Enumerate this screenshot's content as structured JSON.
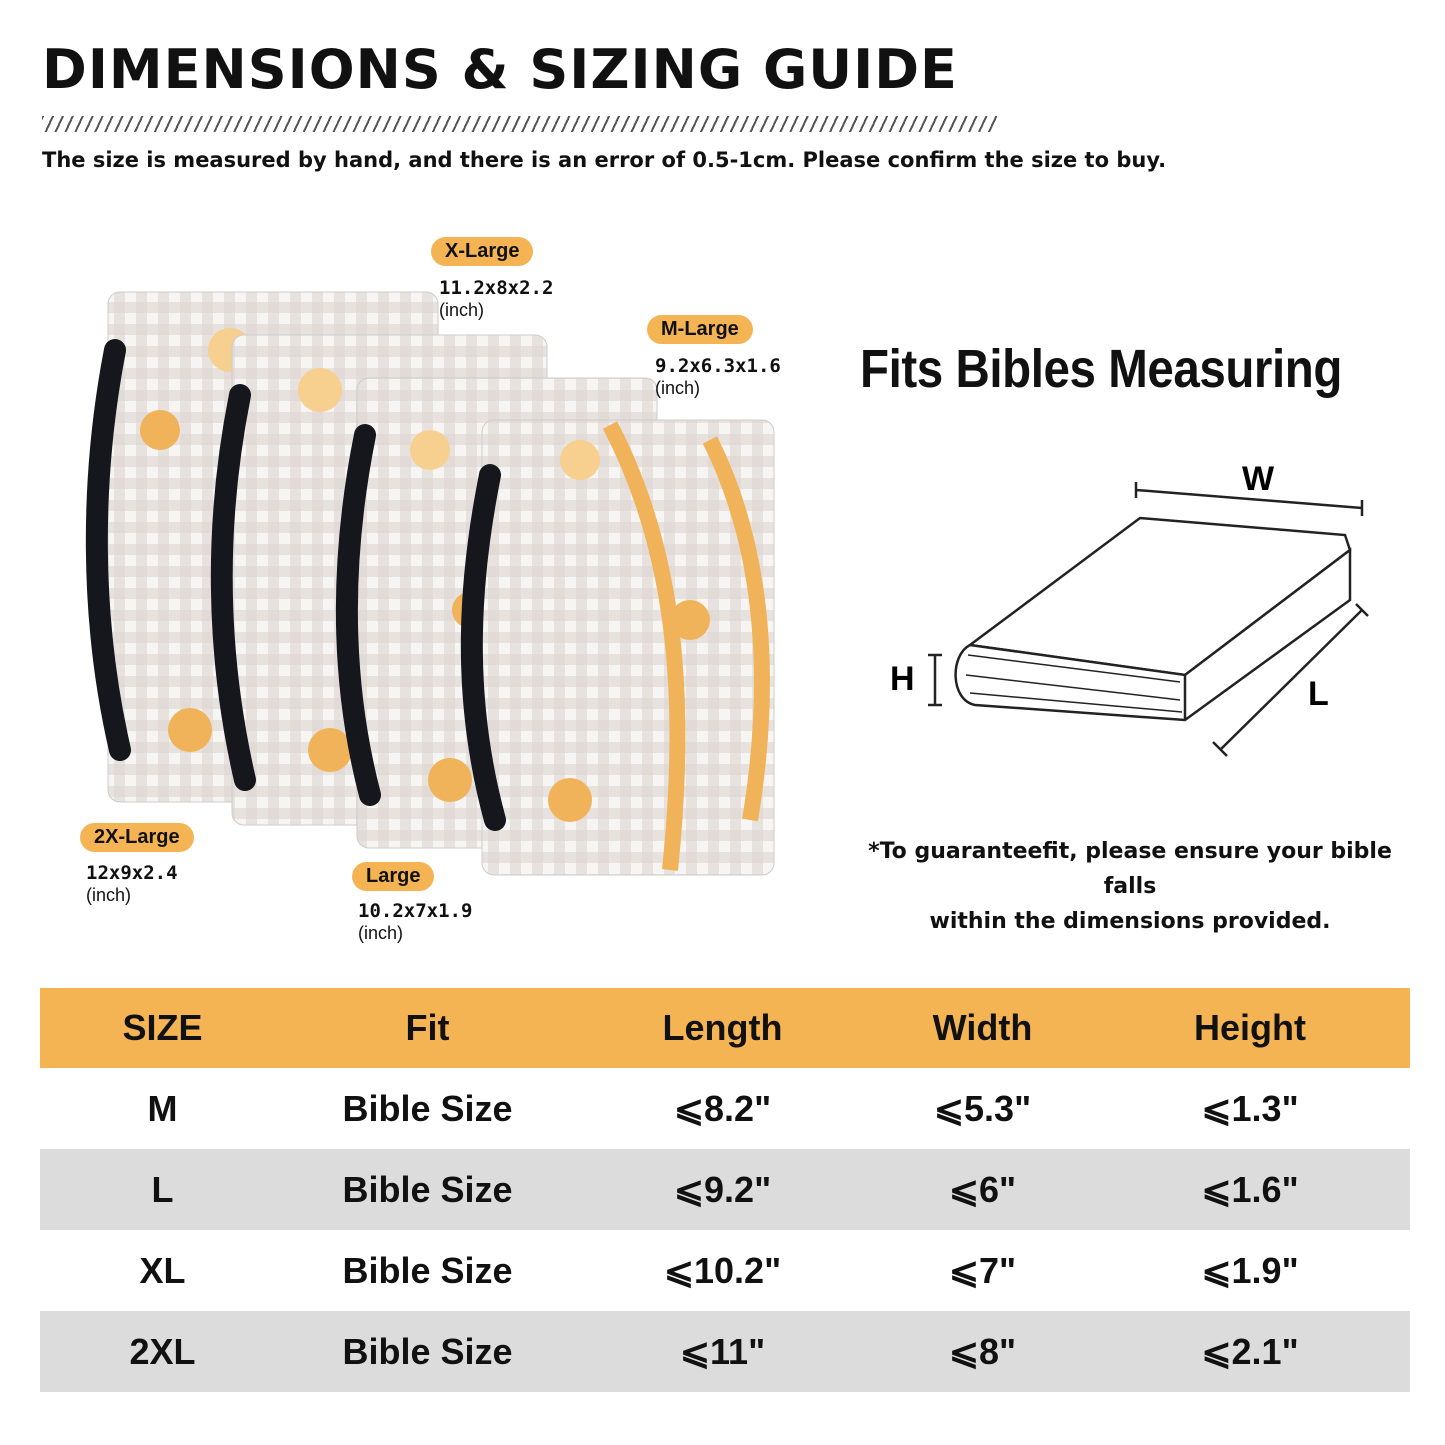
{
  "header": {
    "title": "DIMENSIONS & SIZING GUIDE",
    "note": "The size is measured by hand, and there is an error of 0.5-1cm. Please confirm the size to buy."
  },
  "product_labels": [
    {
      "name": "2X-Large",
      "dims": "12x9x2.4",
      "unit": "(inch)"
    },
    {
      "name": "X-Large",
      "dims": "11.2x8x2.2",
      "unit": "(inch)"
    },
    {
      "name": "Large",
      "dims": "10.2x7x1.9",
      "unit": "(inch)"
    },
    {
      "name": "M-Large",
      "dims": "9.2x6.3x1.6",
      "unit": "(inch)"
    }
  ],
  "diagram": {
    "heading": "Fits Bibles Measuring",
    "w_label": "W",
    "h_label": "H",
    "l_label": "L",
    "guarantee_line1": "*To guaranteefit, please ensure your bible falls",
    "guarantee_line2": "within the dimensions provided."
  },
  "colors": {
    "accent": "#f5b453",
    "row_alt": "#dcdcdc",
    "handle": "#15171c"
  },
  "table": {
    "headers": [
      "SIZE",
      "Fit",
      "Length",
      "Width",
      "Height"
    ],
    "rows": [
      [
        "M",
        "Bible Size",
        "⩽8.2\"",
        "⩽5.3\"",
        "⩽1.3\""
      ],
      [
        "L",
        "Bible Size",
        "⩽9.2\"",
        "⩽6\"",
        "⩽1.6\""
      ],
      [
        "XL",
        "Bible Size",
        "⩽10.2\"",
        "⩽7\"",
        "⩽1.9\""
      ],
      [
        "2XL",
        "Bible Size",
        "⩽11\"",
        "⩽8\"",
        "⩽2.1\""
      ]
    ]
  }
}
